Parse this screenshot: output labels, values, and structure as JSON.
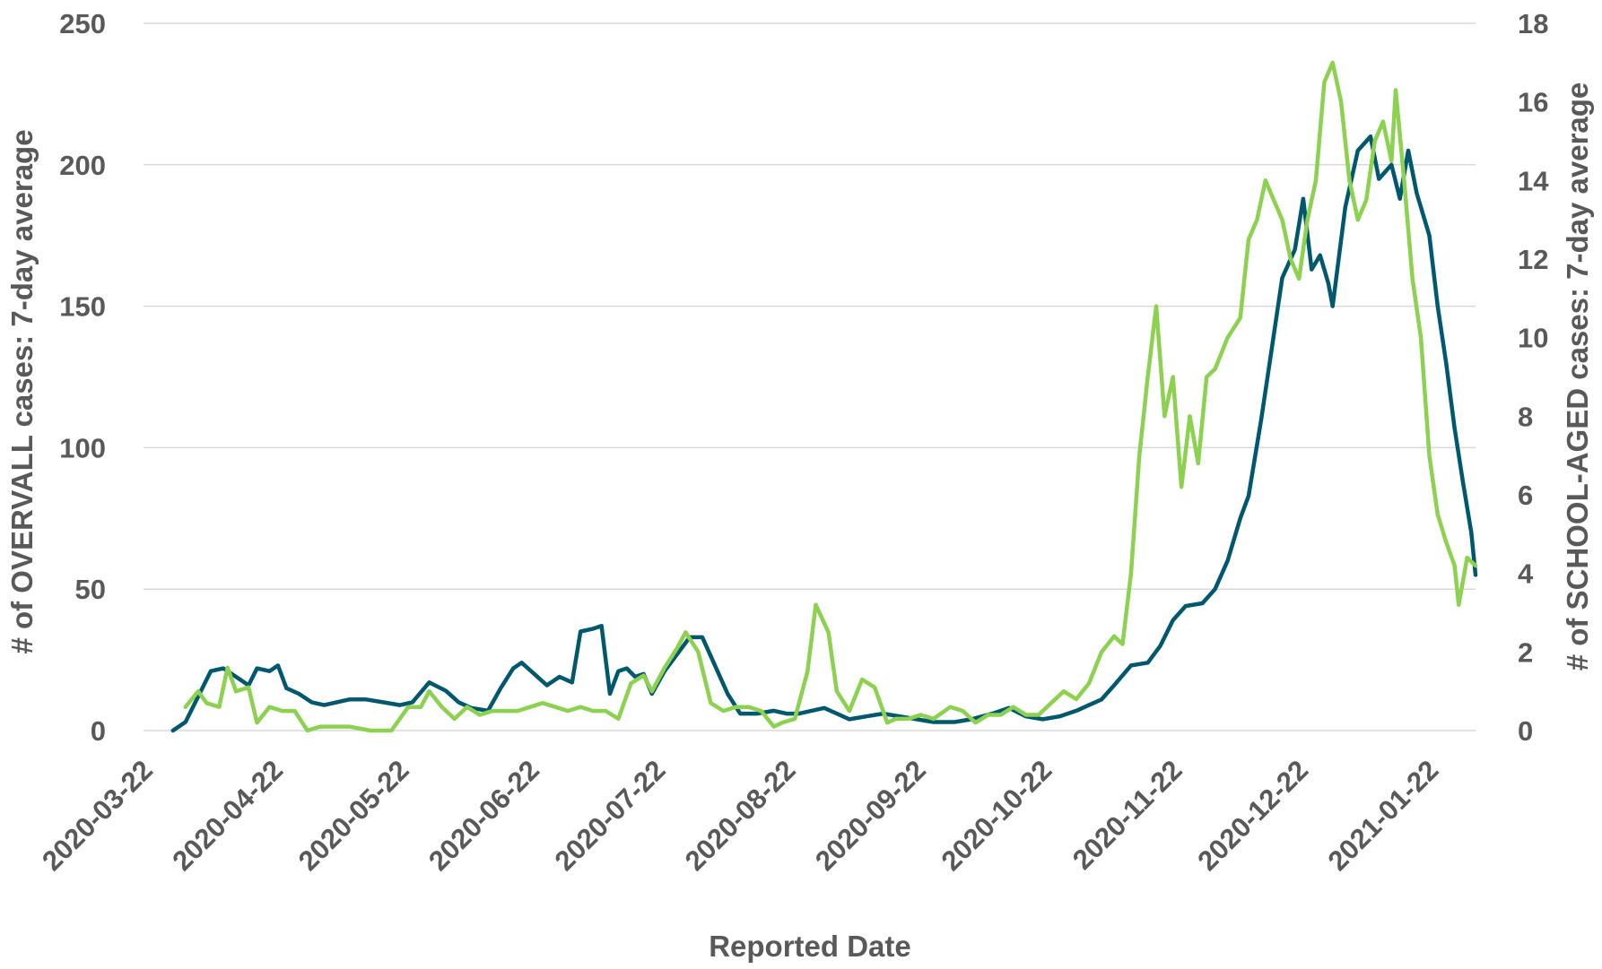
{
  "chart_data": {
    "type": "line",
    "xlabel": "Reported Date",
    "ylabel_left": "# of OVERVALL cases: 7-day average",
    "ylabel_right": "# of SCHOOL-AGED cases: 7-day average",
    "ylim_left": [
      0,
      250
    ],
    "ylim_right": [
      0,
      18
    ],
    "yticks_left": [
      "0",
      "50",
      "100",
      "150",
      "200",
      "250"
    ],
    "yticks_right": [
      "0",
      "2",
      "4",
      "6",
      "8",
      "10",
      "12",
      "14",
      "16",
      "18"
    ],
    "xticks": [
      "2020-03-22",
      "2020-04-22",
      "2020-05-22",
      "2020-06-22",
      "2020-07-22",
      "2020-08-22",
      "2020-09-22",
      "2020-10-22",
      "2020-11-22",
      "2020-12-22",
      "2021-01-22"
    ],
    "xlim": [
      "2020-03-22",
      "2021-02-02"
    ],
    "grid": true,
    "series": [
      {
        "axis": "left",
        "color": "#00586f",
        "points": [
          [
            "2020-03-29",
            0
          ],
          [
            "2020-04-01",
            3
          ],
          [
            "2020-04-04",
            12
          ],
          [
            "2020-04-07",
            21
          ],
          [
            "2020-04-10",
            22
          ],
          [
            "2020-04-13",
            19
          ],
          [
            "2020-04-16",
            16
          ],
          [
            "2020-04-18",
            22
          ],
          [
            "2020-04-21",
            21
          ],
          [
            "2020-04-23",
            23
          ],
          [
            "2020-04-25",
            15
          ],
          [
            "2020-04-28",
            13
          ],
          [
            "2020-05-01",
            10
          ],
          [
            "2020-05-04",
            9
          ],
          [
            "2020-05-07",
            10
          ],
          [
            "2020-05-10",
            11
          ],
          [
            "2020-05-14",
            11
          ],
          [
            "2020-05-18",
            10
          ],
          [
            "2020-05-22",
            9
          ],
          [
            "2020-05-25",
            10
          ],
          [
            "2020-05-29",
            17
          ],
          [
            "2020-06-02",
            14
          ],
          [
            "2020-06-05",
            10
          ],
          [
            "2020-06-08",
            8
          ],
          [
            "2020-06-12",
            7
          ],
          [
            "2020-06-15",
            15
          ],
          [
            "2020-06-18",
            22
          ],
          [
            "2020-06-20",
            24
          ],
          [
            "2020-06-23",
            20
          ],
          [
            "2020-06-26",
            16
          ],
          [
            "2020-06-29",
            19
          ],
          [
            "2020-07-02",
            17
          ],
          [
            "2020-07-04",
            35
          ],
          [
            "2020-07-07",
            36
          ],
          [
            "2020-07-09",
            37
          ],
          [
            "2020-07-11",
            13
          ],
          [
            "2020-07-13",
            21
          ],
          [
            "2020-07-15",
            22
          ],
          [
            "2020-07-17",
            19
          ],
          [
            "2020-07-19",
            20
          ],
          [
            "2020-07-21",
            13
          ],
          [
            "2020-07-24",
            21
          ],
          [
            "2020-07-27",
            27
          ],
          [
            "2020-07-30",
            33
          ],
          [
            "2020-08-02",
            33
          ],
          [
            "2020-08-05",
            23
          ],
          [
            "2020-08-08",
            13
          ],
          [
            "2020-08-11",
            6
          ],
          [
            "2020-08-15",
            6
          ],
          [
            "2020-08-19",
            7
          ],
          [
            "2020-08-22",
            6
          ],
          [
            "2020-08-25",
            6
          ],
          [
            "2020-08-28",
            7
          ],
          [
            "2020-08-31",
            8
          ],
          [
            "2020-09-03",
            6
          ],
          [
            "2020-09-06",
            4
          ],
          [
            "2020-09-10",
            5
          ],
          [
            "2020-09-14",
            6
          ],
          [
            "2020-09-18",
            5
          ],
          [
            "2020-09-22",
            4
          ],
          [
            "2020-09-26",
            3
          ],
          [
            "2020-10-01",
            3
          ],
          [
            "2020-10-05",
            4
          ],
          [
            "2020-10-10",
            6
          ],
          [
            "2020-10-14",
            8
          ],
          [
            "2020-10-18",
            5
          ],
          [
            "2020-10-22",
            4
          ],
          [
            "2020-10-26",
            5
          ],
          [
            "2020-10-30",
            7
          ],
          [
            "2020-11-02",
            9
          ],
          [
            "2020-11-05",
            11
          ],
          [
            "2020-11-08",
            16
          ],
          [
            "2020-11-12",
            23
          ],
          [
            "2020-11-16",
            24
          ],
          [
            "2020-11-19",
            30
          ],
          [
            "2020-11-22",
            39
          ],
          [
            "2020-11-25",
            44
          ],
          [
            "2020-11-29",
            45
          ],
          [
            "2020-12-02",
            50
          ],
          [
            "2020-12-05",
            60
          ],
          [
            "2020-12-08",
            75
          ],
          [
            "2020-12-10",
            83
          ],
          [
            "2020-12-13",
            110
          ],
          [
            "2020-12-15",
            130
          ],
          [
            "2020-12-18",
            160
          ],
          [
            "2020-12-21",
            170
          ],
          [
            "2020-12-23",
            188
          ],
          [
            "2020-12-25",
            163
          ],
          [
            "2020-12-27",
            168
          ],
          [
            "2020-12-29",
            158
          ],
          [
            "2020-12-30",
            150
          ],
          [
            "2021-01-02",
            185
          ],
          [
            "2021-01-05",
            205
          ],
          [
            "2021-01-08",
            210
          ],
          [
            "2021-01-10",
            195
          ],
          [
            "2021-01-13",
            200
          ],
          [
            "2021-01-15",
            188
          ],
          [
            "2021-01-17",
            205
          ],
          [
            "2021-01-19",
            190
          ],
          [
            "2021-01-22",
            175
          ],
          [
            "2021-01-24",
            150
          ],
          [
            "2021-01-26",
            130
          ],
          [
            "2021-01-28",
            107
          ],
          [
            "2021-01-30",
            88
          ],
          [
            "2021-02-01",
            70
          ],
          [
            "2021-02-02",
            55
          ]
        ]
      },
      {
        "axis": "right",
        "color": "#8cd250",
        "points": [
          [
            "2020-04-01",
            0.6
          ],
          [
            "2020-04-04",
            1.0
          ],
          [
            "2020-04-06",
            0.7
          ],
          [
            "2020-04-09",
            0.6
          ],
          [
            "2020-04-11",
            1.6
          ],
          [
            "2020-04-13",
            1.0
          ],
          [
            "2020-04-16",
            1.1
          ],
          [
            "2020-04-18",
            0.2
          ],
          [
            "2020-04-21",
            0.6
          ],
          [
            "2020-04-24",
            0.5
          ],
          [
            "2020-04-27",
            0.5
          ],
          [
            "2020-04-30",
            0.0
          ],
          [
            "2020-05-03",
            0.1
          ],
          [
            "2020-05-10",
            0.1
          ],
          [
            "2020-05-15",
            0.0
          ],
          [
            "2020-05-20",
            0.0
          ],
          [
            "2020-05-24",
            0.6
          ],
          [
            "2020-05-27",
            0.6
          ],
          [
            "2020-05-29",
            1.0
          ],
          [
            "2020-06-01",
            0.6
          ],
          [
            "2020-06-04",
            0.3
          ],
          [
            "2020-06-07",
            0.6
          ],
          [
            "2020-06-10",
            0.4
          ],
          [
            "2020-06-13",
            0.5
          ],
          [
            "2020-06-16",
            0.5
          ],
          [
            "2020-06-19",
            0.5
          ],
          [
            "2020-06-22",
            0.6
          ],
          [
            "2020-06-25",
            0.7
          ],
          [
            "2020-06-28",
            0.6
          ],
          [
            "2020-07-01",
            0.5
          ],
          [
            "2020-07-04",
            0.6
          ],
          [
            "2020-07-07",
            0.5
          ],
          [
            "2020-07-10",
            0.5
          ],
          [
            "2020-07-13",
            0.3
          ],
          [
            "2020-07-16",
            1.2
          ],
          [
            "2020-07-19",
            1.4
          ],
          [
            "2020-07-21",
            1.0
          ],
          [
            "2020-07-24",
            1.6
          ],
          [
            "2020-07-27",
            2.1
          ],
          [
            "2020-07-29",
            2.5
          ],
          [
            "2020-08-01",
            2.0
          ],
          [
            "2020-08-04",
            0.7
          ],
          [
            "2020-08-07",
            0.5
          ],
          [
            "2020-08-10",
            0.6
          ],
          [
            "2020-08-13",
            0.6
          ],
          [
            "2020-08-16",
            0.5
          ],
          [
            "2020-08-19",
            0.1
          ],
          [
            "2020-08-21",
            0.2
          ],
          [
            "2020-08-24",
            0.3
          ],
          [
            "2020-08-27",
            1.5
          ],
          [
            "2020-08-29",
            3.2
          ],
          [
            "2020-09-01",
            2.5
          ],
          [
            "2020-09-03",
            1.0
          ],
          [
            "2020-09-06",
            0.5
          ],
          [
            "2020-09-09",
            1.3
          ],
          [
            "2020-09-12",
            1.1
          ],
          [
            "2020-09-15",
            0.2
          ],
          [
            "2020-09-17",
            0.3
          ],
          [
            "2020-09-20",
            0.3
          ],
          [
            "2020-09-23",
            0.4
          ],
          [
            "2020-09-26",
            0.3
          ],
          [
            "2020-09-30",
            0.6
          ],
          [
            "2020-10-03",
            0.5
          ],
          [
            "2020-10-06",
            0.2
          ],
          [
            "2020-10-09",
            0.4
          ],
          [
            "2020-10-12",
            0.4
          ],
          [
            "2020-10-15",
            0.6
          ],
          [
            "2020-10-18",
            0.4
          ],
          [
            "2020-10-21",
            0.4
          ],
          [
            "2020-10-24",
            0.7
          ],
          [
            "2020-10-27",
            1.0
          ],
          [
            "2020-10-30",
            0.8
          ],
          [
            "2020-11-02",
            1.2
          ],
          [
            "2020-11-05",
            2.0
          ],
          [
            "2020-11-08",
            2.4
          ],
          [
            "2020-11-10",
            2.2
          ],
          [
            "2020-11-12",
            4.0
          ],
          [
            "2020-11-14",
            7.0
          ],
          [
            "2020-11-16",
            9.0
          ],
          [
            "2020-11-18",
            10.8
          ],
          [
            "2020-11-20",
            8.0
          ],
          [
            "2020-11-22",
            9.0
          ],
          [
            "2020-11-24",
            6.2
          ],
          [
            "2020-11-26",
            8.0
          ],
          [
            "2020-11-28",
            6.8
          ],
          [
            "2020-11-30",
            9.0
          ],
          [
            "2020-12-02",
            9.2
          ],
          [
            "2020-12-05",
            10.0
          ],
          [
            "2020-12-08",
            10.5
          ],
          [
            "2020-12-10",
            12.5
          ],
          [
            "2020-12-12",
            13.0
          ],
          [
            "2020-12-14",
            14.0
          ],
          [
            "2020-12-16",
            13.5
          ],
          [
            "2020-12-18",
            13.0
          ],
          [
            "2020-12-20",
            12.0
          ],
          [
            "2020-12-22",
            11.5
          ],
          [
            "2020-12-24",
            13.0
          ],
          [
            "2020-12-26",
            14.0
          ],
          [
            "2020-12-28",
            16.5
          ],
          [
            "2020-12-30",
            17.0
          ],
          [
            "2021-01-01",
            16.0
          ],
          [
            "2021-01-03",
            14.0
          ],
          [
            "2021-01-05",
            13.0
          ],
          [
            "2021-01-07",
            13.5
          ],
          [
            "2021-01-09",
            15.0
          ],
          [
            "2021-01-11",
            15.5
          ],
          [
            "2021-01-13",
            14.5
          ],
          [
            "2021-01-14",
            16.3
          ],
          [
            "2021-01-16",
            14.0
          ],
          [
            "2021-01-18",
            11.5
          ],
          [
            "2021-01-20",
            10.0
          ],
          [
            "2021-01-22",
            7.0
          ],
          [
            "2021-01-24",
            5.5
          ],
          [
            "2021-01-26",
            4.8
          ],
          [
            "2021-01-28",
            4.2
          ],
          [
            "2021-01-29",
            3.2
          ],
          [
            "2021-01-31",
            4.4
          ],
          [
            "2021-02-02",
            4.2
          ]
        ]
      }
    ]
  }
}
